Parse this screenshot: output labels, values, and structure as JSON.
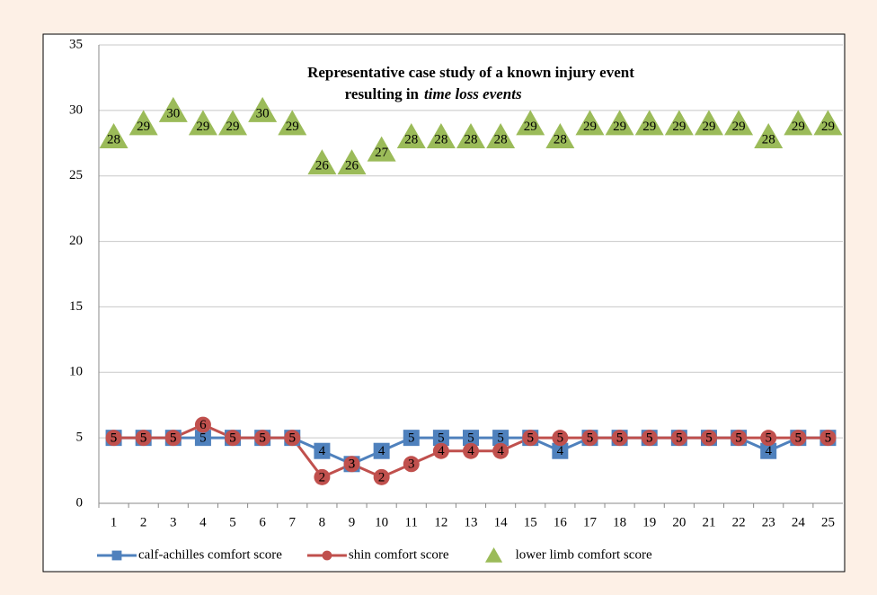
{
  "chart_data": {
    "type": "line",
    "title": [
      "Representative case study of a known injury event",
      "resulting in",
      "time loss events"
    ],
    "categories": [
      "1",
      "2",
      "3",
      "4",
      "5",
      "6",
      "7",
      "8",
      "9",
      "10",
      "11",
      "12",
      "13",
      "14",
      "15",
      "16",
      "17",
      "18",
      "19",
      "20",
      "21",
      "22",
      "23",
      "24",
      "25"
    ],
    "series": [
      {
        "name": "calf-achilles comfort score",
        "color": "#4f81bd",
        "marker": "square",
        "line": true,
        "values": [
          5,
          5,
          5,
          5,
          5,
          5,
          5,
          4,
          3,
          4,
          5,
          5,
          5,
          5,
          5,
          4,
          5,
          5,
          5,
          5,
          5,
          5,
          4,
          5,
          5
        ]
      },
      {
        "name": "shin comfort score",
        "color": "#c0504d",
        "marker": "circle",
        "line": true,
        "values": [
          5,
          5,
          5,
          6,
          5,
          5,
          5,
          2,
          3,
          2,
          3,
          4,
          4,
          4,
          5,
          5,
          5,
          5,
          5,
          5,
          5,
          5,
          5,
          5,
          5
        ]
      },
      {
        "name": "lower limb comfort score",
        "color": "#9bbb59",
        "marker": "triangle",
        "line": false,
        "values": [
          28,
          29,
          30,
          29,
          29,
          30,
          29,
          26,
          26,
          27,
          28,
          28,
          28,
          28,
          29,
          28,
          29,
          29,
          29,
          29,
          29,
          29,
          28,
          29,
          29
        ]
      }
    ],
    "ylim": [
      0,
      35
    ],
    "yticks": [
      0,
      5,
      10,
      15,
      20,
      25,
      30,
      35
    ],
    "grid": true,
    "legend": "bottom"
  }
}
